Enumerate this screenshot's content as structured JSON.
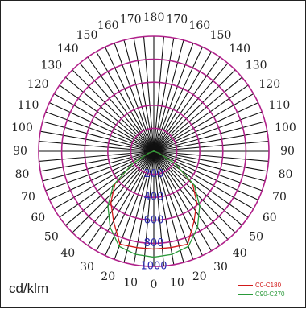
{
  "chart_data": {
    "type": "polar",
    "unit": "cd/klm",
    "angle_labels_left": [
      "0",
      "10",
      "20",
      "30",
      "40",
      "50",
      "60",
      "70",
      "80",
      "90",
      "100",
      "110",
      "120",
      "130",
      "140",
      "150",
      "160",
      "170"
    ],
    "angle_labels_right": [
      "180",
      "170",
      "160",
      "150",
      "140",
      "130",
      "120",
      "110",
      "100",
      "90",
      "80",
      "70",
      "60",
      "50",
      "40",
      "30",
      "20",
      "10"
    ],
    "angle_step_deg": 5,
    "radial_ticks": [
      200,
      400,
      600,
      800,
      1000
    ],
    "radial_tick_labels": [
      "200",
      "400",
      "600",
      "800",
      "1000"
    ],
    "radial_max": 1000,
    "grid_color": "#b0208a",
    "series": [
      {
        "name": "C0-C180",
        "color": "#d11a1a",
        "angles": [
          0,
          10,
          20,
          30,
          40,
          50,
          60,
          70,
          80,
          90
        ],
        "values": [
          850,
          850,
          860,
          700,
          580,
          440,
          210,
          50,
          5,
          0
        ]
      },
      {
        "name": "C90-C270",
        "color": "#2a9a3a",
        "angles": [
          0,
          10,
          20,
          30,
          40,
          50,
          60,
          70,
          80,
          90
        ],
        "values": [
          920,
          910,
          880,
          760,
          620,
          460,
          210,
          50,
          5,
          0
        ]
      }
    ]
  }
}
